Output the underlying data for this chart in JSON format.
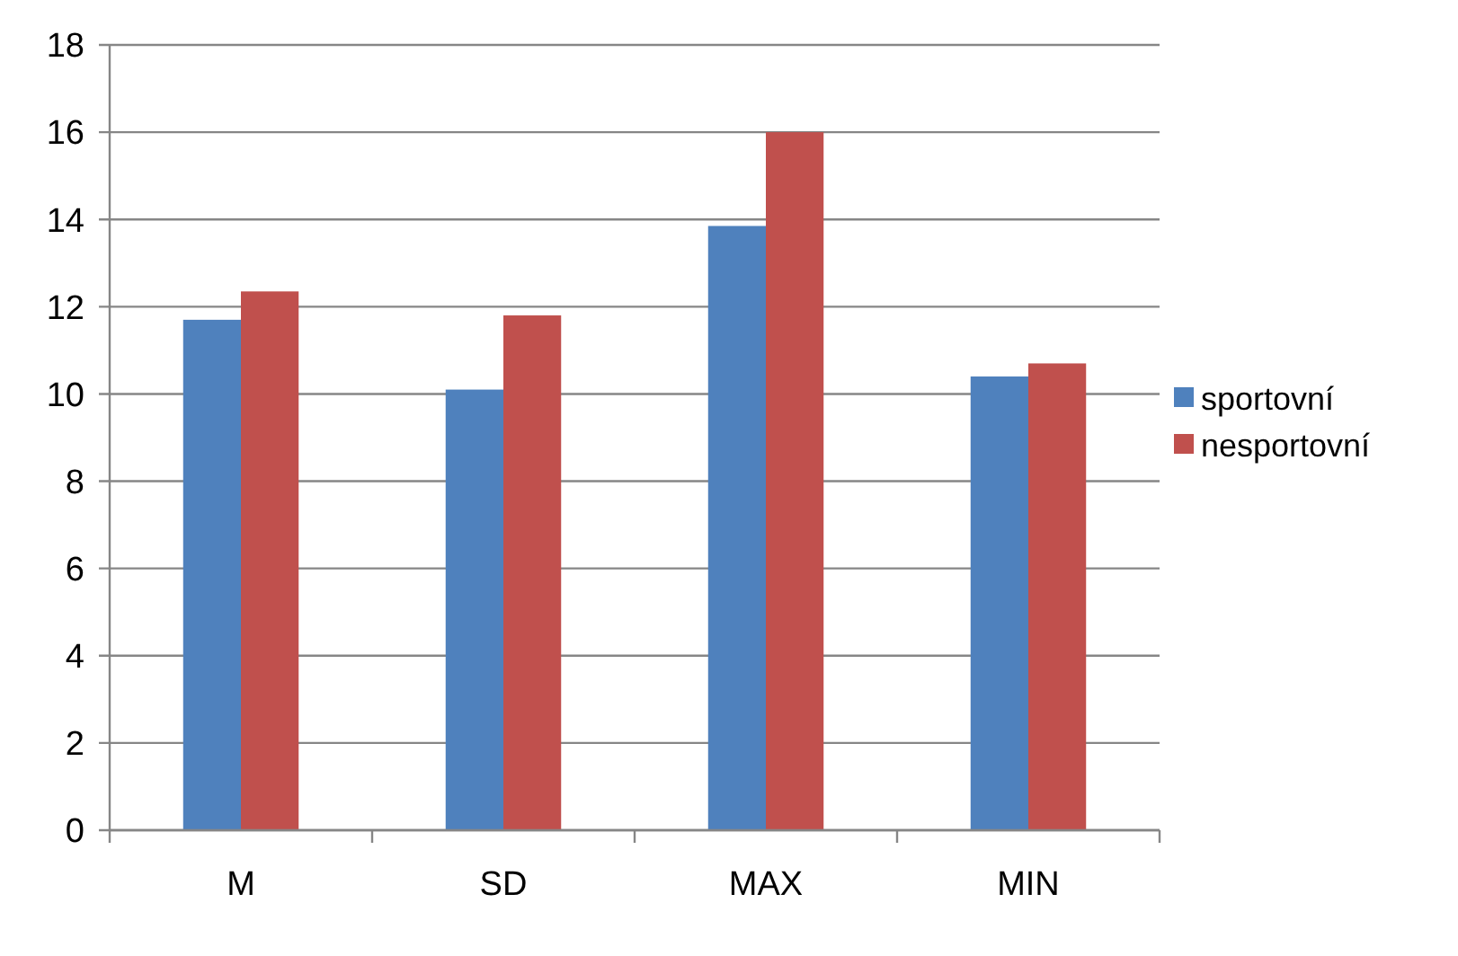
{
  "chart_data": {
    "type": "bar",
    "categories": [
      "M",
      "SD",
      "MAX",
      "MIN"
    ],
    "series": [
      {
        "name": "sportovní",
        "color": "#4f81bd",
        "values": [
          11.7,
          10.1,
          13.85,
          10.4
        ]
      },
      {
        "name": "nesportovní",
        "color": "#c0504d",
        "values": [
          12.35,
          11.8,
          16,
          10.7
        ]
      }
    ],
    "ylim": [
      0,
      18
    ],
    "yticks": [
      0,
      2,
      4,
      6,
      8,
      10,
      12,
      14,
      16,
      18
    ],
    "grid": "y",
    "legend": "right"
  }
}
